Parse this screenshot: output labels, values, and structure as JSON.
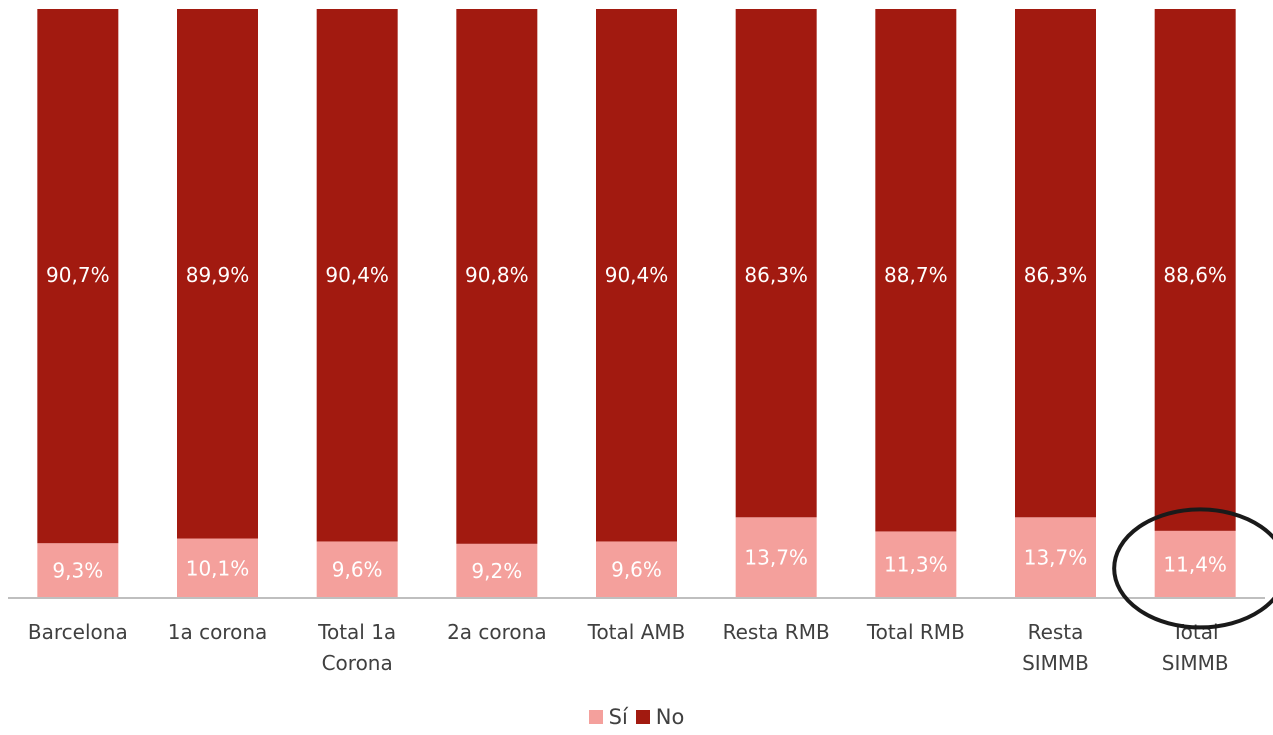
{
  "chart_data": {
    "type": "bar",
    "stacked": true,
    "percent": true,
    "categories": [
      [
        "Barcelona"
      ],
      [
        "1a corona"
      ],
      [
        "Total 1a",
        "Corona"
      ],
      [
        "2a corona"
      ],
      [
        "Total AMB"
      ],
      [
        "Resta RMB"
      ],
      [
        "Total RMB"
      ],
      [
        "Resta",
        "SIMMB"
      ],
      [
        "Total",
        "SIMMB"
      ]
    ],
    "series": [
      {
        "name": "Sí",
        "color": "#F4A09C",
        "values": [
          9.3,
          10.1,
          9.6,
          9.2,
          9.6,
          13.7,
          11.3,
          13.7,
          11.4
        ],
        "labels": [
          "9,3%",
          "10,1%",
          "9,6%",
          "9,2%",
          "9,6%",
          "13,7%",
          "11,3%",
          "13,7%",
          "11,4%"
        ]
      },
      {
        "name": "No",
        "color": "#A21A10",
        "values": [
          90.7,
          89.9,
          90.4,
          90.8,
          90.4,
          86.3,
          88.7,
          86.3,
          88.6
        ],
        "labels": [
          "90,7%",
          "89,9%",
          "90,4%",
          "90,8%",
          "90,4%",
          "86,3%",
          "88,7%",
          "86,3%",
          "88,6%"
        ]
      }
    ],
    "ylim": [
      0,
      100
    ],
    "title": "",
    "xlabel": "",
    "ylabel": "",
    "grid": false,
    "legend_position": "bottom",
    "highlight": {
      "category_index": 8,
      "shape": "ellipse",
      "color": "#1a1a1a"
    }
  }
}
